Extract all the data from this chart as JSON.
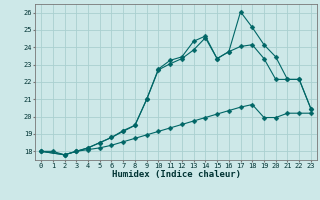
{
  "title": "",
  "xlabel": "Humidex (Indice chaleur)",
  "ylabel": "",
  "bg_color": "#cde8e8",
  "grid_color": "#aad0d0",
  "line_color": "#006666",
  "marker_color": "#006666",
  "xlim": [
    -0.5,
    23.5
  ],
  "ylim": [
    17.5,
    26.5
  ],
  "xticks": [
    0,
    1,
    2,
    3,
    4,
    5,
    6,
    7,
    8,
    9,
    10,
    11,
    12,
    13,
    14,
    15,
    16,
    17,
    18,
    19,
    20,
    21,
    22,
    23
  ],
  "yticks": [
    18,
    19,
    20,
    21,
    22,
    23,
    24,
    25,
    26
  ],
  "line1_x": [
    0,
    1,
    2,
    3,
    4,
    5,
    6,
    7,
    8,
    9,
    10,
    11,
    12,
    13,
    14,
    15,
    16,
    17,
    18,
    19,
    20,
    21,
    22,
    23
  ],
  "line1_y": [
    18.0,
    18.0,
    17.8,
    18.0,
    18.1,
    18.2,
    18.35,
    18.55,
    18.75,
    18.95,
    19.15,
    19.35,
    19.55,
    19.75,
    19.95,
    20.15,
    20.35,
    20.55,
    20.7,
    19.95,
    19.95,
    20.2,
    20.2,
    20.2
  ],
  "line2_x": [
    0,
    2,
    3,
    4,
    5,
    6,
    7,
    8,
    9,
    10,
    11,
    12,
    13,
    14,
    15,
    16,
    17,
    18,
    19,
    20,
    21,
    22,
    23
  ],
  "line2_y": [
    18.0,
    17.8,
    18.0,
    18.2,
    18.5,
    18.8,
    19.15,
    19.5,
    21.0,
    22.7,
    23.05,
    23.35,
    23.85,
    24.55,
    23.35,
    23.75,
    24.05,
    24.15,
    23.35,
    22.15,
    22.15,
    22.15,
    20.45
  ],
  "line3_x": [
    0,
    2,
    3,
    4,
    5,
    6,
    7,
    8,
    9,
    10,
    11,
    12,
    13,
    14,
    15,
    16,
    17,
    18,
    19,
    20,
    21,
    22,
    23
  ],
  "line3_y": [
    18.0,
    17.8,
    18.0,
    18.2,
    18.5,
    18.8,
    19.2,
    19.5,
    21.0,
    22.75,
    23.25,
    23.45,
    24.35,
    24.65,
    23.35,
    23.75,
    26.05,
    25.15,
    24.15,
    23.45,
    22.15,
    22.15,
    20.45
  ],
  "marker_size": 2.5,
  "linewidth": 0.8,
  "tick_fontsize": 5.0,
  "xlabel_fontsize": 6.5
}
